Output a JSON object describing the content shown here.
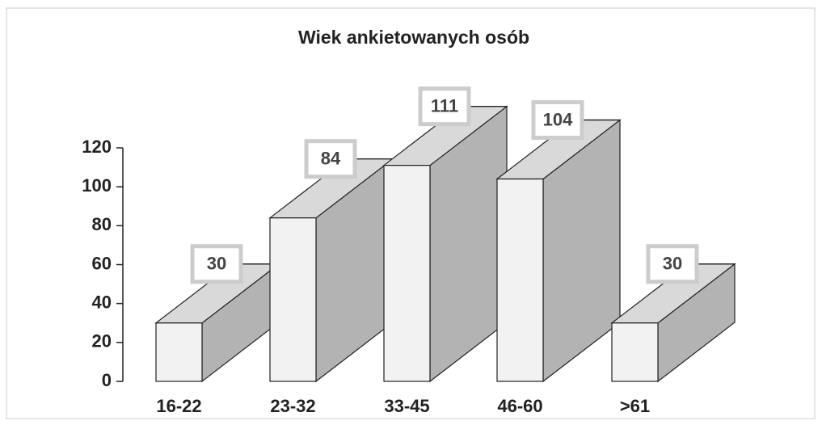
{
  "chart_data": {
    "type": "bar3d",
    "title": "Wiek ankietowanych osób",
    "categories": [
      "16-22",
      "23-32",
      "33-45",
      "46-60",
      ">61"
    ],
    "values": [
      30,
      84,
      111,
      104,
      30
    ],
    "ylim": [
      0,
      120
    ],
    "yticks": [
      0,
      20,
      40,
      60,
      80,
      100,
      120
    ],
    "colors": {
      "front": "#f2f2f2",
      "top": "#d9d9d9",
      "side": "#b3b3b3"
    }
  }
}
